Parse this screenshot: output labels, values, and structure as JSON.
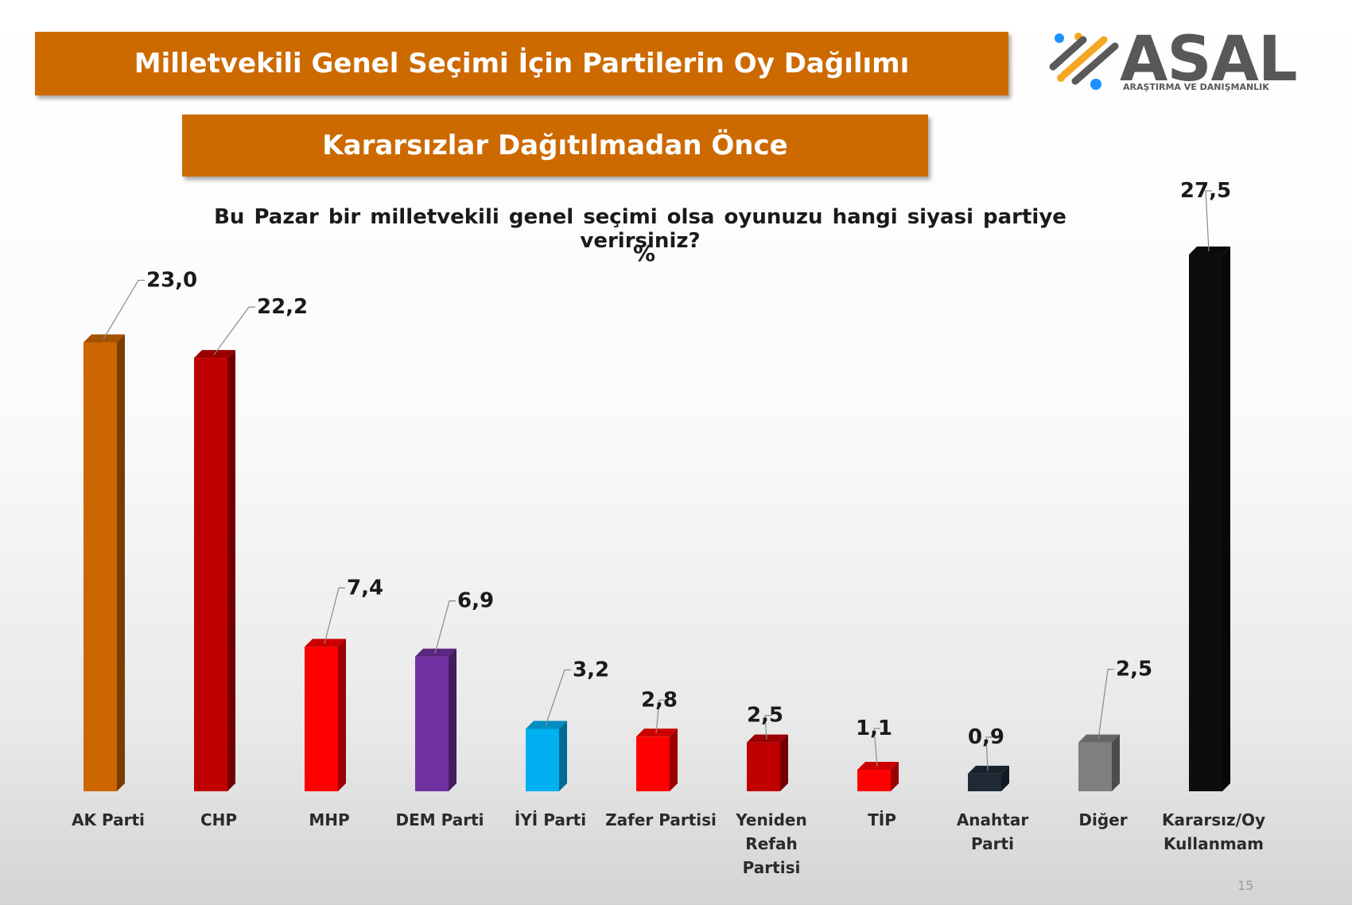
{
  "header": {
    "title": "Milletvekili Genel Seçimi İçin Partilerin Oy Dağılımı",
    "subtitle": "Kararsızlar Dağıtılmadan Önce"
  },
  "logo": {
    "name": "ASAL",
    "tagline": "ARAŞTIRMA VE DANIŞMANLIK"
  },
  "page_number": "15",
  "chart_data": {
    "type": "bar",
    "title": "Bu Pazar bir milletvekili genel seçimi olsa oyunuzu hangi siyasi partiye verirsiniz?",
    "unit": "%",
    "categories": [
      "AK Parti",
      "CHP",
      "MHP",
      "DEM Parti",
      "İYİ Parti",
      "Zafer Partisi",
      "Yeniden Refah Partisi",
      "TİP",
      "Anahtar Parti",
      "Diğer",
      "Kararsız/Oy Kullanmam"
    ],
    "category_lines": [
      [
        "AK Parti"
      ],
      [
        "CHP"
      ],
      [
        "MHP"
      ],
      [
        "DEM Parti"
      ],
      [
        "İYİ Parti"
      ],
      [
        "Zafer Partisi"
      ],
      [
        "Yeniden",
        "Refah",
        "Partisi"
      ],
      [
        "TİP"
      ],
      [
        "Anahtar",
        "Parti"
      ],
      [
        "Diğer"
      ],
      [
        "Kararsız/Oy",
        "Kullanmam"
      ]
    ],
    "values": [
      23.0,
      22.2,
      7.4,
      6.9,
      3.2,
      2.8,
      2.5,
      1.1,
      0.9,
      2.5,
      27.5
    ],
    "value_labels": [
      "23,0",
      "22,2",
      "7,4",
      "6,9",
      "3,2",
      "2,8",
      "2,5",
      "1,1",
      "0,9",
      "2,5",
      "27,5"
    ],
    "colors": [
      "#cc6600",
      "#c00000",
      "#ff0000",
      "#7030a0",
      "#00b0f0",
      "#ff0000",
      "#c00000",
      "#ff0000",
      "#1f2a36",
      "#7f7f7f",
      "#0d0d0d"
    ],
    "ylim": [
      0,
      27.5
    ],
    "grid": false,
    "legend": "none"
  }
}
